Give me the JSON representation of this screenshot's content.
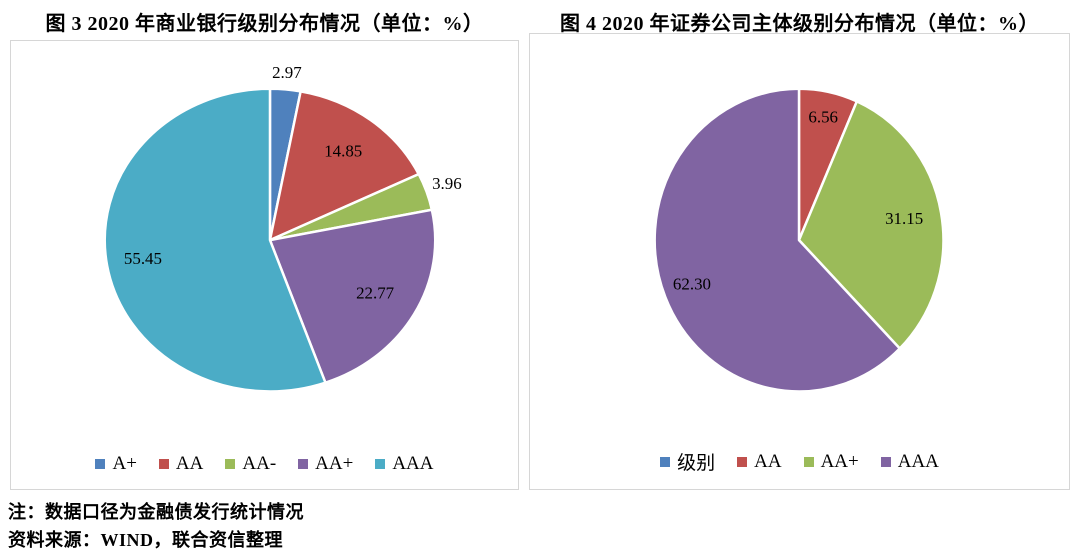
{
  "chart_data": [
    {
      "type": "pie",
      "title": "图 3  2020 年商业银行级别分布情况（单位：%）",
      "categories": [
        "A+",
        "AA",
        "AA-",
        "AA+",
        "AAA"
      ],
      "values": [
        2.97,
        14.85,
        3.96,
        22.77,
        55.45
      ],
      "data_labels": [
        "2.97",
        "14.85",
        "3.96",
        "22.77",
        "55.45"
      ],
      "colors": [
        "#4F81BD",
        "#C0504D",
        "#9BBB59",
        "#8064A2",
        "#4BACC6"
      ],
      "label_radius_factors": [
        1.1,
        0.73,
        1.13,
        0.73,
        0.78
      ],
      "start_angle": "12-oclock",
      "direction": "clockwise",
      "legend_position": "bottom",
      "slice_border_color": "#FFFFFF"
    },
    {
      "type": "pie",
      "title": "图 4  2020 年证券公司主体级别分布情况（单位：%）",
      "categories": [
        "级别",
        "AA",
        "AA+",
        "AAA"
      ],
      "values": [
        0,
        6.56,
        31.15,
        62.3
      ],
      "data_labels": [
        "",
        "6.56",
        "31.15",
        "62.30"
      ],
      "colors": [
        "#4F81BD",
        "#C0504D",
        "#9BBB59",
        "#8064A2"
      ],
      "label_radius_factors": [
        0,
        0.82,
        0.74,
        0.8
      ],
      "start_angle": "12-oclock",
      "direction": "clockwise",
      "legend_position": "bottom",
      "slice_border_color": "#FFFFFF"
    }
  ],
  "notes": {
    "note": "注：数据口径为金融债发行统计情况",
    "source": "资料来源：WIND，联合资信整理"
  }
}
